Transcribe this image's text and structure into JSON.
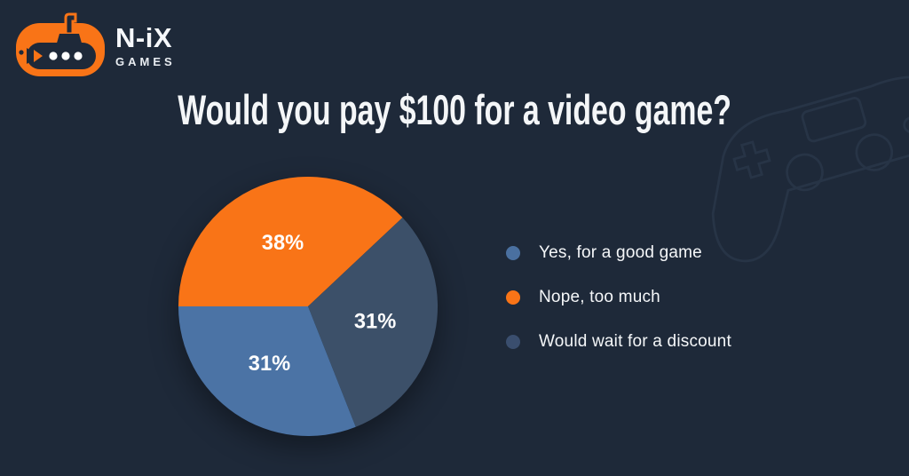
{
  "brand": {
    "name": "N-iX",
    "tagline": "GAMES",
    "logo_icon": "submarine-icon",
    "logo_color": "#f97417"
  },
  "title": "Would you pay $100 for a video game?",
  "colors": {
    "background": "#1e2939",
    "accent_orange": "#f97417",
    "slice_blue": "#4b73a5",
    "slice_dark_blue": "#3c5069",
    "text": "#f2f5f8"
  },
  "watermark_icon": "gamepad-icon",
  "chart_data": {
    "type": "pie",
    "title": "Would you pay $100 for a video game?",
    "start_angle_deg": 180,
    "sweep_direction": "clockwise",
    "grid": false,
    "legend_position": "right",
    "slices": [
      {
        "label": "Nope, too much",
        "value": 38,
        "display_label": "38%",
        "color": "#f97417"
      },
      {
        "label": "Would wait for a discount",
        "value": 31,
        "display_label": "31%",
        "color": "#3c5069"
      },
      {
        "label": "Yes, for a good game",
        "value": 31,
        "display_label": "31%",
        "color": "#4b73a5"
      }
    ],
    "legend": [
      {
        "label": "Yes, for a good game",
        "color": "#4a70a0"
      },
      {
        "label": "Nope, too much",
        "color": "#f97417"
      },
      {
        "label": "Would wait for a discount",
        "color": "#3a4e6e"
      }
    ]
  }
}
